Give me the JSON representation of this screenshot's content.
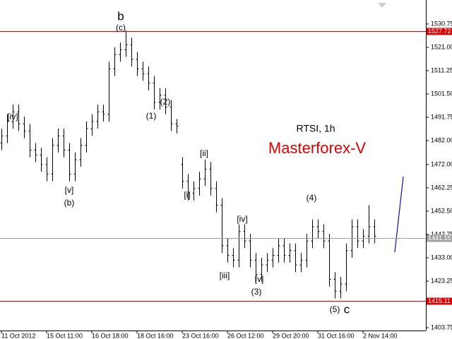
{
  "chart_data": {
    "type": "ohlc",
    "title": "RTSI, 1h",
    "subtitle": "Masterforex-V",
    "x": [
      0,
      2,
      4,
      6,
      8,
      10,
      12,
      14,
      16,
      18,
      20,
      22,
      24,
      26,
      28,
      30,
      32,
      34,
      36,
      38,
      40,
      42,
      44,
      46,
      48,
      50,
      52,
      54,
      56,
      58,
      60,
      62,
      64,
      66,
      68,
      70,
      72,
      74,
      76,
      78,
      80,
      82,
      84,
      86,
      88,
      90,
      92,
      94,
      96,
      98,
      100,
      102,
      104,
      106,
      108,
      110,
      112,
      114,
      116,
      118,
      120,
      122,
      124,
      126,
      128,
      130,
      132
    ],
    "open": [
      1481,
      1484,
      1490,
      1494,
      1489,
      1486,
      1478,
      1476,
      1472,
      1468,
      1480,
      1484,
      1478,
      1468,
      1474,
      1480,
      1487,
      1490,
      1494,
      1493,
      1512,
      1518,
      1520,
      1522,
      1516,
      1512,
      1510,
      1506,
      1498,
      1501,
      1496,
      1489,
      1472,
      1465,
      1460,
      1462,
      1466,
      1470,
      1462,
      1455,
      1438,
      1434,
      1432,
      1444,
      1440,
      1432,
      1426,
      1430,
      1432,
      1434,
      1438,
      1434,
      1436,
      1430,
      1432,
      1440,
      1446,
      1444,
      1440,
      1424,
      1419,
      1422,
      1436,
      1446,
      1440,
      1442,
      1446
    ],
    "high": [
      1487,
      1493,
      1497,
      1497,
      1492,
      1489,
      1481,
      1479,
      1475,
      1483,
      1487,
      1487,
      1481,
      1477,
      1483,
      1490,
      1493,
      1497,
      1497,
      1515,
      1521,
      1523,
      1528,
      1525,
      1519,
      1515,
      1513,
      1509,
      1504,
      1504,
      1499,
      1491,
      1475,
      1468,
      1465,
      1469,
      1474,
      1473,
      1465,
      1458,
      1441,
      1437,
      1447,
      1447,
      1443,
      1435,
      1433,
      1435,
      1437,
      1441,
      1441,
      1439,
      1439,
      1435,
      1443,
      1449,
      1449,
      1447,
      1443,
      1427,
      1425,
      1439,
      1449,
      1449,
      1445,
      1455,
      1449
    ],
    "low": [
      1478,
      1481,
      1487,
      1486,
      1483,
      1475,
      1473,
      1469,
      1465,
      1465,
      1477,
      1475,
      1465,
      1465,
      1471,
      1477,
      1484,
      1487,
      1490,
      1490,
      1509,
      1515,
      1517,
      1513,
      1509,
      1507,
      1503,
      1495,
      1495,
      1493,
      1486,
      1485,
      1462,
      1457,
      1457,
      1459,
      1463,
      1459,
      1452,
      1435,
      1431,
      1429,
      1429,
      1437,
      1429,
      1423,
      1423,
      1427,
      1429,
      1431,
      1431,
      1431,
      1427,
      1427,
      1429,
      1437,
      1441,
      1437,
      1421,
      1416,
      1416,
      1419,
      1433,
      1437,
      1437,
      1439,
      1439
    ],
    "close": [
      1484,
      1490,
      1494,
      1489,
      1486,
      1478,
      1476,
      1472,
      1468,
      1480,
      1484,
      1478,
      1468,
      1474,
      1480,
      1487,
      1490,
      1494,
      1493,
      1512,
      1518,
      1520,
      1522,
      1516,
      1512,
      1510,
      1506,
      1498,
      1501,
      1496,
      1489,
      1488,
      1465,
      1460,
      1462,
      1466,
      1470,
      1462,
      1455,
      1438,
      1434,
      1432,
      1444,
      1440,
      1432,
      1426,
      1430,
      1432,
      1434,
      1438,
      1434,
      1436,
      1430,
      1432,
      1440,
      1446,
      1444,
      1440,
      1424,
      1419,
      1422,
      1436,
      1446,
      1440,
      1442,
      1446,
      1442
    ],
    "color": "#000000",
    "xlim": [
      -0.5,
      150.25
    ],
    "xticks": [
      {
        "value": 0,
        "label": "11 Oct 2012"
      },
      {
        "value": 16,
        "label": "15 Oct 11:00"
      },
      {
        "value": 32,
        "label": "16 Oct 18:00"
      },
      {
        "value": 48,
        "label": "18 Oct 16:00"
      },
      {
        "value": 64,
        "label": "23 Oct 16:00"
      },
      {
        "value": 80,
        "label": "26 Oct 12:00"
      },
      {
        "value": 96,
        "label": "29 Oct 20:00"
      },
      {
        "value": 112,
        "label": "31 Oct 16:00"
      },
      {
        "value": 128,
        "label": "2 Nov 14:00"
      }
    ],
    "ylim": [
      1402.57,
      1540.79
    ],
    "yticks": [
      {
        "value": 1530.75,
        "label": "1530.75"
      },
      {
        "value": 1521,
        "label": "1521.00"
      },
      {
        "value": 1511.25,
        "label": "1511.25"
      },
      {
        "value": 1501.5,
        "label": "1501.50"
      },
      {
        "value": 1491.75,
        "label": "1491.75"
      },
      {
        "value": 1482,
        "label": "1482.00"
      },
      {
        "value": 1472,
        "label": "1472.00"
      },
      {
        "value": 1462.25,
        "label": "1462.25"
      },
      {
        "value": 1452.5,
        "label": "1452.50"
      },
      {
        "value": 1442.75,
        "label": "1442.75"
      },
      {
        "value": 1433,
        "label": "1433.00"
      },
      {
        "value": 1423.25,
        "label": "1423.25"
      },
      {
        "value": 1403.75,
        "label": "1403.75"
      }
    ],
    "levels": [
      {
        "value": 1527.72,
        "color": "#e00000"
      },
      {
        "value": 1441.15,
        "color": "#a0a0a0"
      },
      {
        "value": 1415.11,
        "color": "#e00000"
      }
    ],
    "annotations": [
      "[iv]",
      "b",
      "(c)",
      "(2)",
      "(1)",
      "[v]",
      "(b)",
      "[ii]",
      "[i]",
      "[iv]",
      "[iii]",
      "[v]",
      "(3)",
      "(4)",
      "(5)",
      "c"
    ]
  }
}
